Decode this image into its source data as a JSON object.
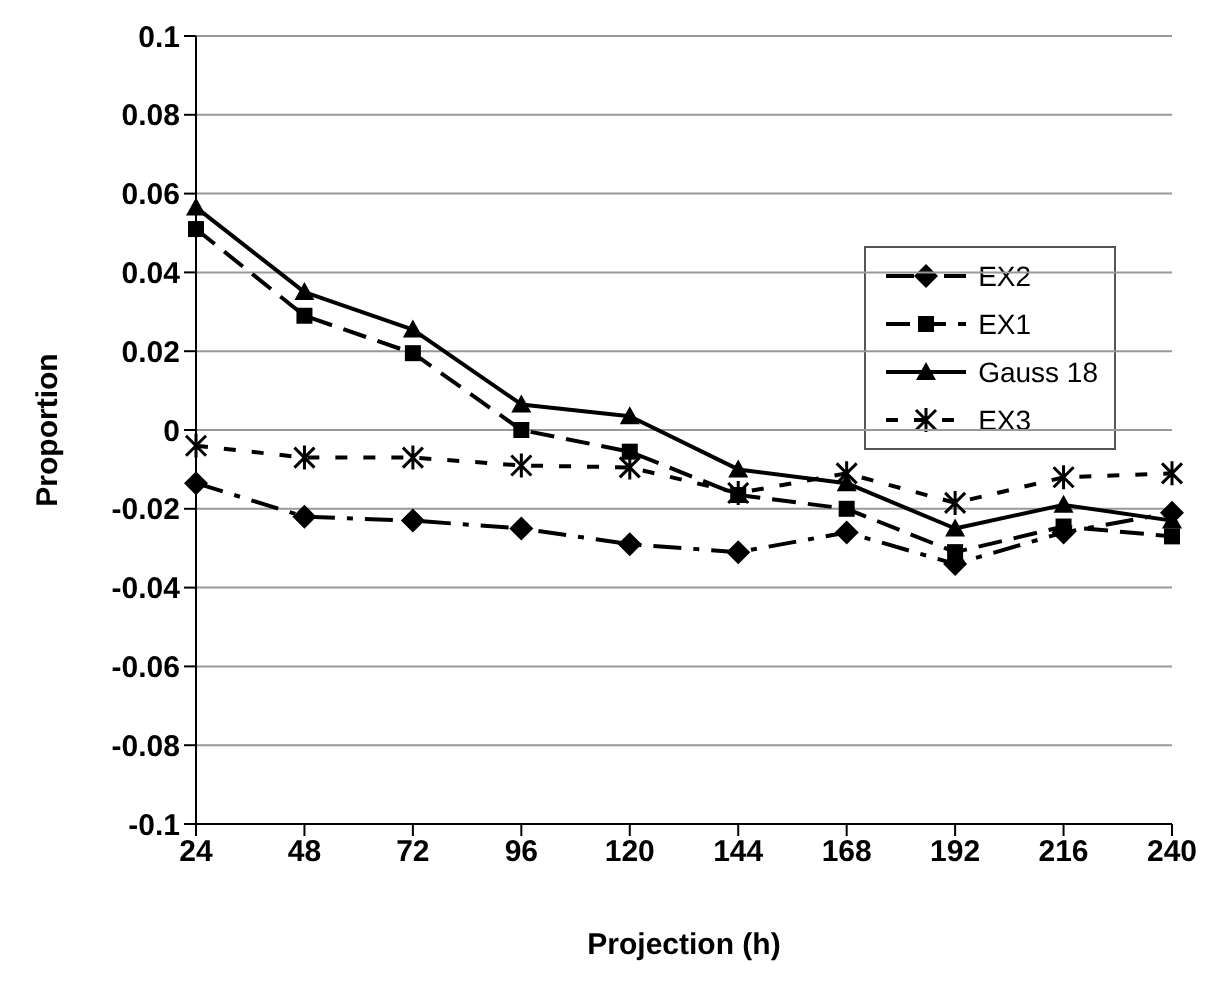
{
  "chart_data": {
    "type": "line",
    "xlabel": "Projection (h)",
    "ylabel": "Proportion",
    "categories": [
      "24",
      "48",
      "72",
      "96",
      "120",
      "144",
      "168",
      "192",
      "216",
      "240"
    ],
    "ylim": [
      -0.1,
      0.1
    ],
    "yticks": [
      -0.1,
      -0.08,
      -0.06,
      -0.04,
      -0.02,
      0,
      0.02,
      0.04,
      0.06,
      0.08,
      0.1
    ],
    "grid": "y",
    "legend": "top right",
    "series": [
      {
        "name": "EX2",
        "color": "#000000",
        "marker": "diamond",
        "line_style": "dashdot",
        "values": [
          -0.0135,
          -0.022,
          -0.023,
          -0.025,
          -0.029,
          -0.031,
          -0.026,
          -0.034,
          -0.026,
          -0.021
        ]
      },
      {
        "name": "EX1",
        "color": "#000000",
        "marker": "square",
        "line_style": "dashed",
        "values": [
          0.051,
          0.029,
          0.0195,
          0,
          -0.0055,
          -0.0165,
          -0.02,
          -0.031,
          -0.0245,
          -0.027
        ]
      },
      {
        "name": "Gauss 18",
        "color": "#000000",
        "marker": "triangle",
        "line_style": "solid",
        "values": [
          0.0565,
          0.035,
          0.0255,
          0.0065,
          0.0035,
          -0.01,
          -0.0135,
          -0.025,
          -0.019,
          -0.023
        ]
      },
      {
        "name": "EX3",
        "color": "#000000",
        "marker": "cross",
        "line_style": "dotted",
        "values": [
          -0.004,
          -0.007,
          -0.007,
          -0.009,
          -0.0095,
          -0.016,
          -0.011,
          -0.0185,
          -0.012,
          -0.011
        ]
      }
    ]
  }
}
